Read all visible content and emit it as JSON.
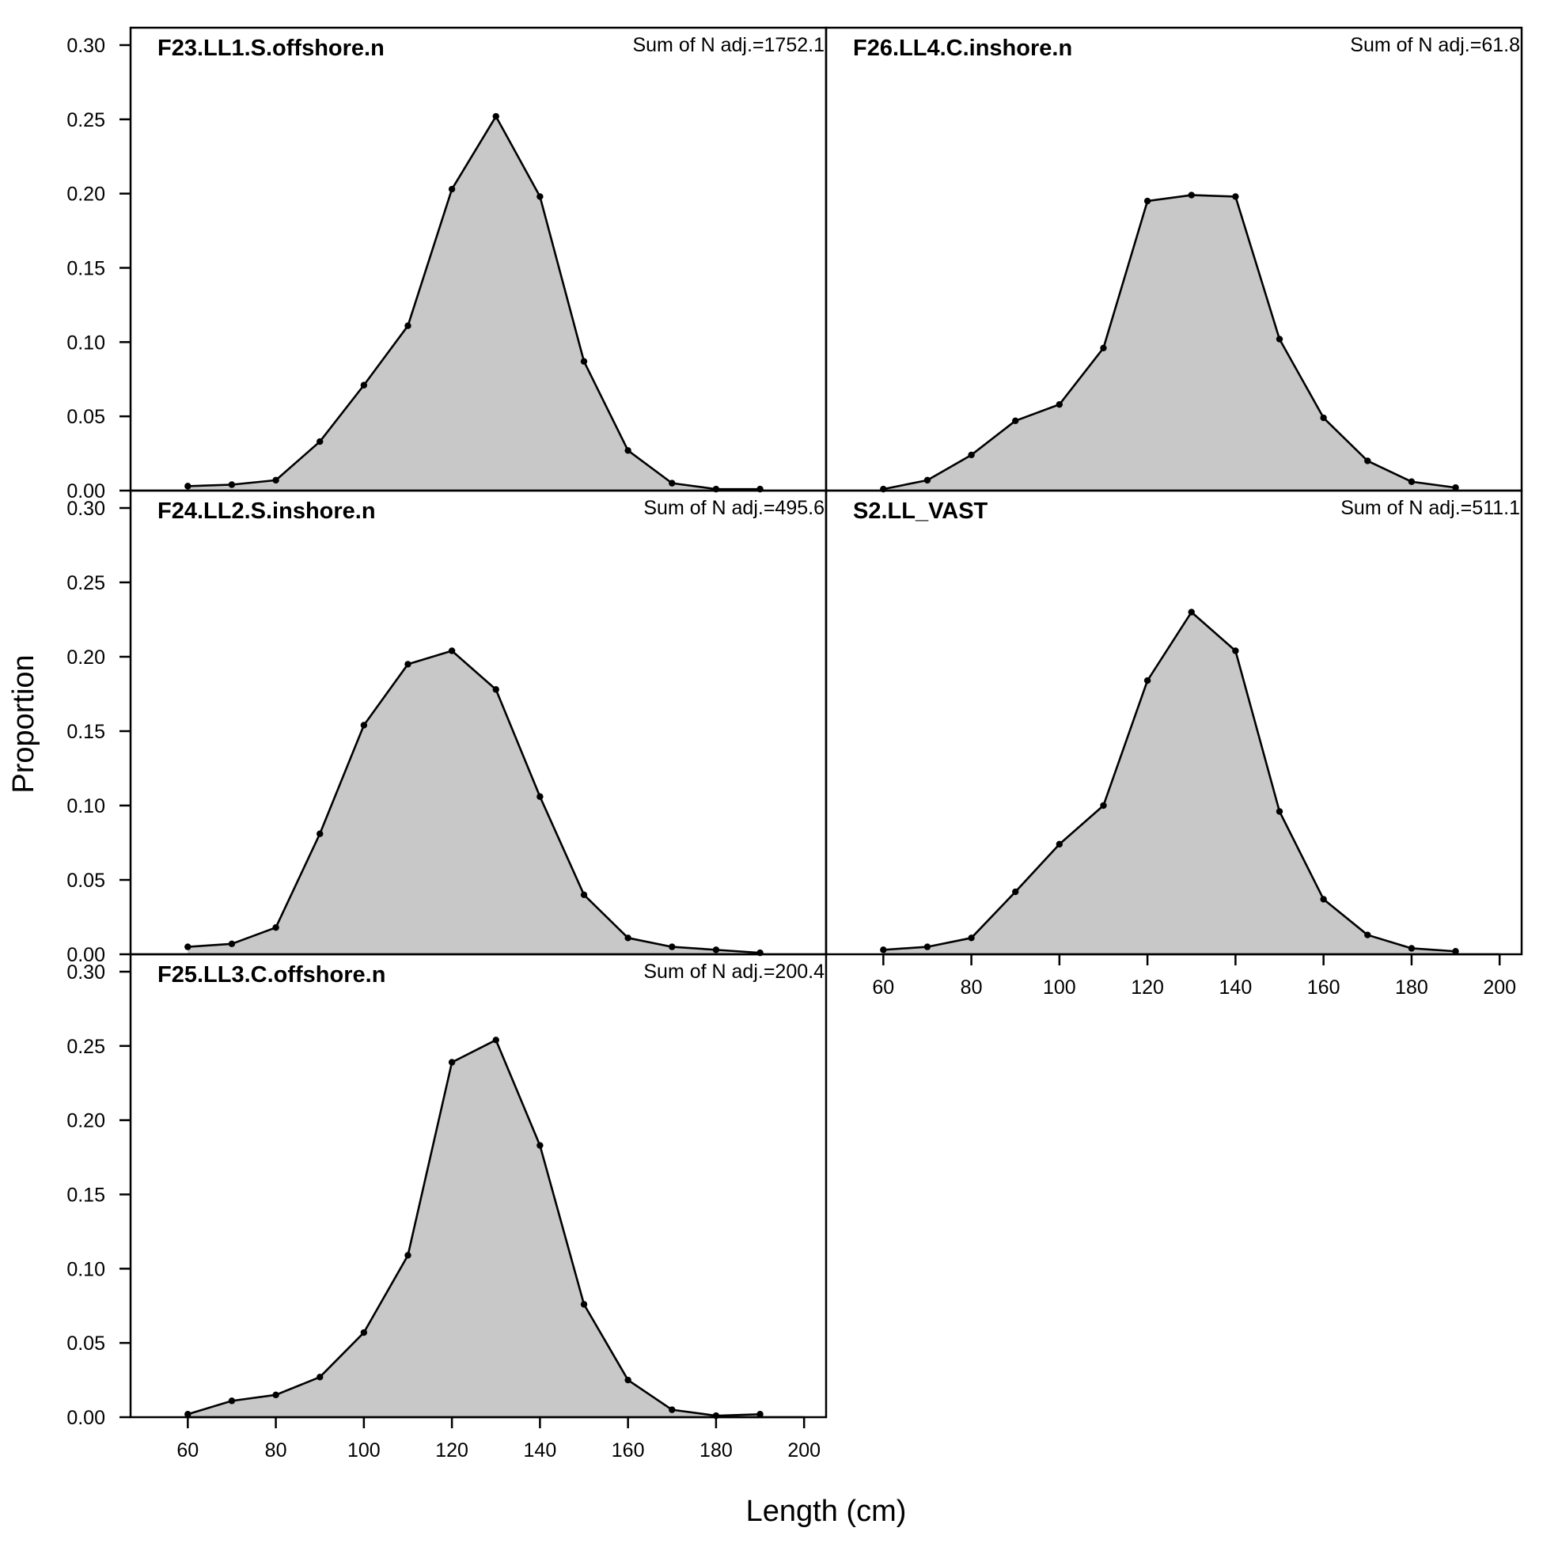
{
  "colors": {
    "fill": "#c8c8c8",
    "line": "#000000"
  },
  "xlabel": "Length (cm)",
  "ylabel": "Proportion",
  "chart_data": [
    {
      "type": "area",
      "title": "F23.LL1.S.offshore.n",
      "note": "Sum of N adj.=1752.1",
      "x": [
        60,
        70,
        80,
        90,
        100,
        110,
        120,
        130,
        140,
        150,
        160,
        170,
        180,
        190
      ],
      "y": [
        0.003,
        0.004,
        0.007,
        0.033,
        0.071,
        0.111,
        0.203,
        0.252,
        0.198,
        0.087,
        0.027,
        0.005,
        0.001,
        0.001
      ],
      "ylim": [
        0,
        0.3
      ],
      "yticks": [
        "0.00",
        "0.05",
        "0.10",
        "0.15",
        "0.20",
        "0.25",
        "0.30"
      ]
    },
    {
      "type": "area",
      "title": "F26.LL4.C.inshore.n",
      "note": "Sum of N adj.=61.8",
      "x": [
        60,
        70,
        80,
        90,
        100,
        110,
        120,
        130,
        140,
        150,
        160,
        170,
        180,
        190
      ],
      "y": [
        0.001,
        0.007,
        0.024,
        0.047,
        0.058,
        0.096,
        0.195,
        0.199,
        0.198,
        0.102,
        0.049,
        0.02,
        0.006,
        0.002
      ],
      "ylim": [
        0,
        0.3
      ]
    },
    {
      "type": "area",
      "title": "F24.LL2.S.inshore.n",
      "note": "Sum of N adj.=495.6",
      "x": [
        60,
        70,
        80,
        90,
        100,
        110,
        120,
        130,
        140,
        150,
        160,
        170,
        180,
        190
      ],
      "y": [
        0.005,
        0.007,
        0.018,
        0.081,
        0.154,
        0.195,
        0.204,
        0.178,
        0.106,
        0.04,
        0.011,
        0.005,
        0.003,
        0.001
      ],
      "ylim": [
        0,
        0.3
      ],
      "yticks": [
        "0.00",
        "0.05",
        "0.10",
        "0.15",
        "0.20",
        "0.25",
        "0.30"
      ]
    },
    {
      "type": "area",
      "title": "S2.LL_VAST",
      "note": "Sum of N adj.=511.1",
      "x": [
        60,
        70,
        80,
        90,
        100,
        110,
        120,
        130,
        140,
        150,
        160,
        170,
        180,
        190
      ],
      "y": [
        0.003,
        0.005,
        0.011,
        0.042,
        0.074,
        0.1,
        0.184,
        0.23,
        0.204,
        0.096,
        0.037,
        0.013,
        0.004,
        0.002
      ],
      "ylim": [
        0,
        0.3
      ],
      "xticks": [
        "60",
        "80",
        "100",
        "120",
        "140",
        "160",
        "180",
        "200"
      ]
    },
    {
      "type": "area",
      "title": "F25.LL3.C.offshore.n",
      "note": "Sum of N adj.=200.4",
      "x": [
        60,
        70,
        80,
        90,
        100,
        110,
        120,
        130,
        140,
        150,
        160,
        170,
        180,
        190
      ],
      "y": [
        0.002,
        0.011,
        0.015,
        0.027,
        0.057,
        0.109,
        0.239,
        0.254,
        0.183,
        0.076,
        0.025,
        0.005,
        0.001,
        0.002
      ],
      "ylim": [
        0,
        0.3
      ],
      "yticks": [
        "0.00",
        "0.05",
        "0.10",
        "0.15",
        "0.20",
        "0.25",
        "0.30"
      ],
      "xticks": [
        "60",
        "80",
        "100",
        "120",
        "140",
        "160",
        "180",
        "200"
      ]
    }
  ]
}
